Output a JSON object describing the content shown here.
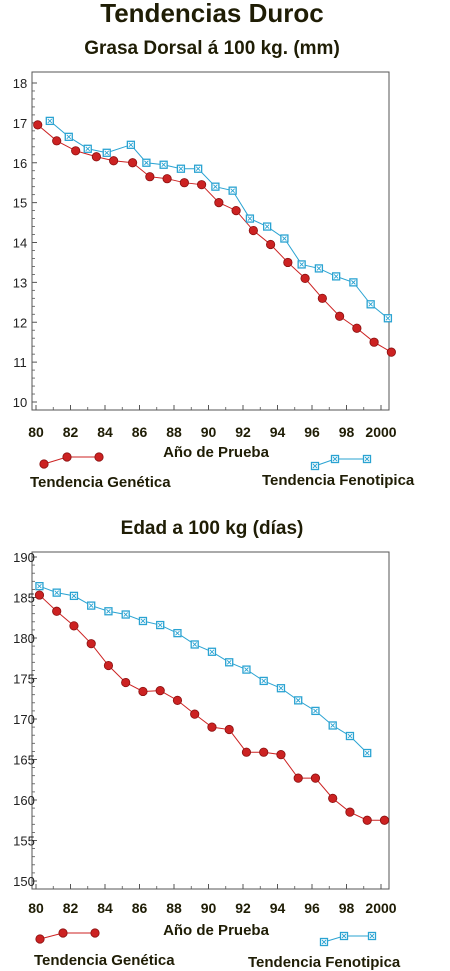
{
  "page_title": "Tendencias Duroc",
  "colors": {
    "genetic": "#cc2222",
    "phenotypic": "#2aa3d2",
    "text": "#1f1d05",
    "frame": "#555555"
  },
  "chart_data": [
    {
      "type": "line",
      "title": "Grasa Dorsal á 100 kg. (mm)",
      "xlabel": "Año de Prueba",
      "ylabel": "",
      "xlim": [
        80,
        2000
      ],
      "ylim": [
        10,
        18
      ],
      "xticks": [
        80,
        82,
        84,
        86,
        88,
        90,
        92,
        94,
        96,
        98,
        2000
      ],
      "xtick_labels": [
        "80",
        "82",
        "84",
        "86",
        "88",
        "90",
        "92",
        "94",
        "96",
        "98",
        "2000"
      ],
      "yticks": [
        10,
        11,
        12,
        13,
        14,
        15,
        16,
        17,
        18
      ],
      "ytick_labels": [
        "10",
        "11",
        "12",
        "13",
        "14",
        "15",
        "16",
        "17",
        "18"
      ],
      "legend_position": "bottom",
      "series": [
        {
          "name": "Tendencia Genética",
          "marker": "circle",
          "x": [
            80.1,
            81.2,
            82.3,
            83.5,
            84.5,
            85.6,
            86.6,
            87.6,
            88.6,
            89.6,
            90.6,
            91.6,
            92.6,
            93.6,
            94.6,
            95.6,
            96.6,
            97.6,
            98.6,
            99.6,
            100.6
          ],
          "y": [
            16.95,
            16.55,
            16.3,
            16.15,
            16.05,
            16.0,
            15.65,
            15.6,
            15.5,
            15.45,
            15.0,
            14.8,
            14.3,
            13.95,
            13.5,
            13.1,
            12.6,
            12.15,
            11.85,
            11.5,
            11.25
          ]
        },
        {
          "name": "Tendencia Fenotipica",
          "marker": "square",
          "x": [
            80.8,
            81.9,
            83.0,
            84.1,
            85.5,
            86.4,
            87.4,
            88.4,
            89.4,
            90.4,
            91.4,
            92.4,
            93.4,
            94.4,
            95.4,
            96.4,
            97.4,
            98.4,
            99.4,
            100.4
          ],
          "y": [
            17.05,
            16.65,
            16.35,
            16.25,
            16.45,
            16.0,
            15.95,
            15.85,
            15.85,
            15.4,
            15.3,
            14.6,
            14.4,
            14.1,
            13.45,
            13.35,
            13.15,
            13.0,
            12.45,
            12.1
          ]
        }
      ]
    },
    {
      "type": "line",
      "title": "Edad a 100 kg (días)",
      "xlabel": "Año de Prueba",
      "ylabel": "",
      "xlim": [
        80,
        2000
      ],
      "ylim": [
        150,
        190
      ],
      "xticks": [
        80,
        82,
        84,
        86,
        88,
        90,
        92,
        94,
        96,
        98,
        2000
      ],
      "xtick_labels": [
        "80",
        "82",
        "84",
        "86",
        "88",
        "90",
        "92",
        "94",
        "96",
        "98",
        "2000"
      ],
      "yticks": [
        150,
        155,
        160,
        165,
        170,
        175,
        180,
        185,
        190
      ],
      "ytick_labels": [
        "150",
        "155",
        "160",
        "165",
        "170",
        "175",
        "180",
        "185",
        "190"
      ],
      "legend_position": "bottom",
      "series": [
        {
          "name": "Tendencia Genética",
          "marker": "circle",
          "x": [
            80.2,
            81.2,
            82.2,
            83.2,
            84.2,
            85.2,
            86.2,
            87.2,
            88.2,
            89.2,
            90.2,
            91.2,
            92.2,
            93.2,
            94.2,
            95.2,
            96.2,
            97.2,
            98.2,
            99.2,
            100.2
          ],
          "y": [
            185.3,
            183.3,
            181.5,
            179.3,
            176.6,
            174.5,
            173.4,
            173.5,
            172.3,
            170.6,
            169.0,
            168.7,
            165.9,
            165.9,
            165.6,
            162.7,
            162.7,
            160.2,
            158.5,
            157.5,
            157.5
          ]
        },
        {
          "name": "Tendencia Fenotipica",
          "marker": "square",
          "x": [
            80.2,
            81.2,
            82.2,
            83.2,
            84.2,
            85.2,
            86.2,
            87.2,
            88.2,
            89.2,
            90.2,
            91.2,
            92.2,
            93.2,
            94.2,
            95.2,
            96.2,
            97.2,
            98.2,
            99.2
          ],
          "y": [
            186.4,
            185.6,
            185.2,
            184.0,
            183.3,
            182.9,
            182.1,
            181.6,
            180.6,
            179.2,
            178.3,
            177.0,
            176.1,
            174.7,
            173.8,
            172.3,
            171.0,
            169.2,
            167.9,
            165.8
          ]
        }
      ]
    }
  ]
}
